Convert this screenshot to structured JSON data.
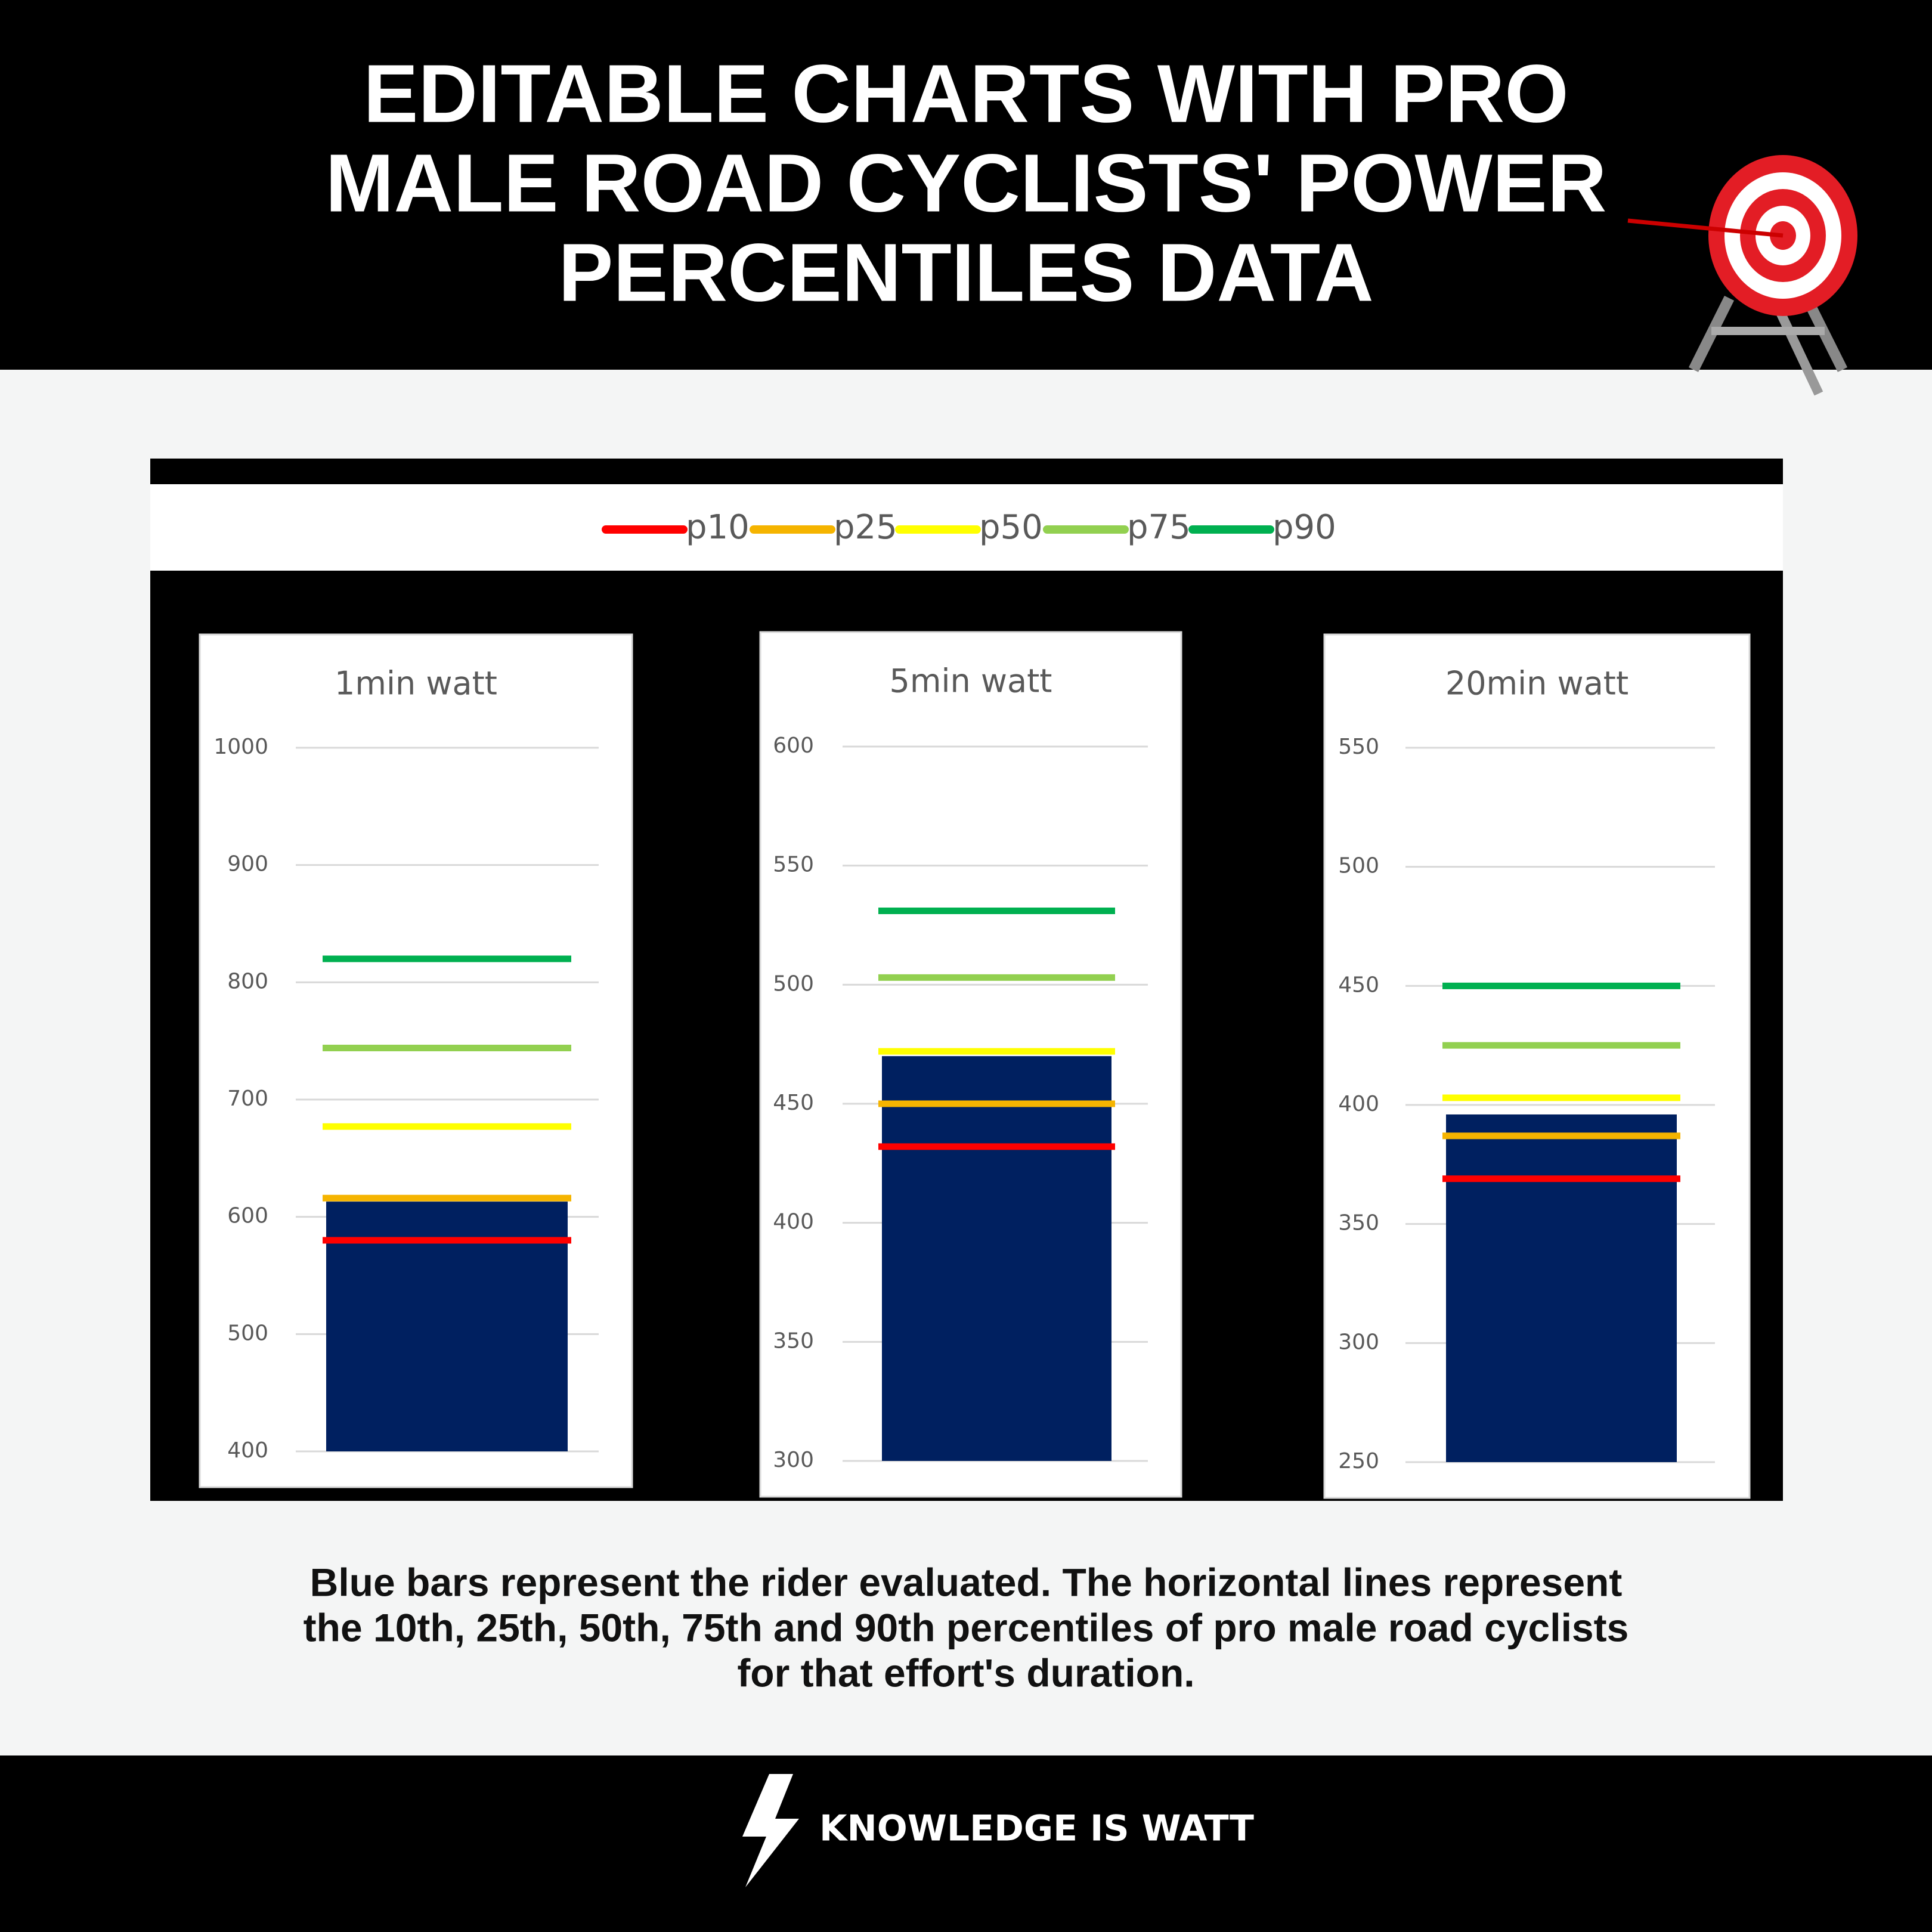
{
  "header": {
    "title_lines": [
      "EDITABLE CHARTS WITH PRO",
      "MALE ROAD CYCLISTS' POWER",
      "PERCENTILES DATA"
    ]
  },
  "legend": [
    {
      "name": "p10",
      "color": "#ff0000"
    },
    {
      "name": "p25",
      "color": "#f5b400"
    },
    {
      "name": "p50",
      "color": "#ffff00"
    },
    {
      "name": "p75",
      "color": "#92d050"
    },
    {
      "name": "p90",
      "color": "#00b050"
    }
  ],
  "chart_data": [
    {
      "type": "bar",
      "title": "1min watt",
      "values": [
        613
      ],
      "color": "#002060",
      "percentiles": [
        580,
        616,
        677,
        744,
        820
      ],
      "ylim": [
        400,
        1000
      ],
      "yticks": [
        400,
        500,
        600,
        700,
        800,
        900,
        1000
      ],
      "grid": true
    },
    {
      "type": "bar",
      "title": "5min watt",
      "values": [
        470
      ],
      "color": "#002060",
      "percentiles": [
        432,
        450,
        472,
        503,
        531
      ],
      "ylim": [
        300,
        600
      ],
      "yticks": [
        300,
        350,
        400,
        450,
        500,
        550,
        600
      ],
      "grid": true
    },
    {
      "type": "bar",
      "title": "20min watt",
      "values": [
        396
      ],
      "color": "#002060",
      "percentiles": [
        369,
        387,
        403,
        425,
        450
      ],
      "ylim": [
        250,
        550
      ],
      "yticks": [
        250,
        300,
        350,
        400,
        450,
        500,
        550
      ],
      "grid": true
    }
  ],
  "caption": {
    "lines": [
      "Blue bars represent the rider evaluated. The horizontal lines represent",
      "the 10th, 25th, 50th, 75th and 90th percentiles of pro male road cyclists",
      "for that effort's duration."
    ]
  },
  "footer": {
    "brand": "KNOWLEDGE IS WATT"
  }
}
